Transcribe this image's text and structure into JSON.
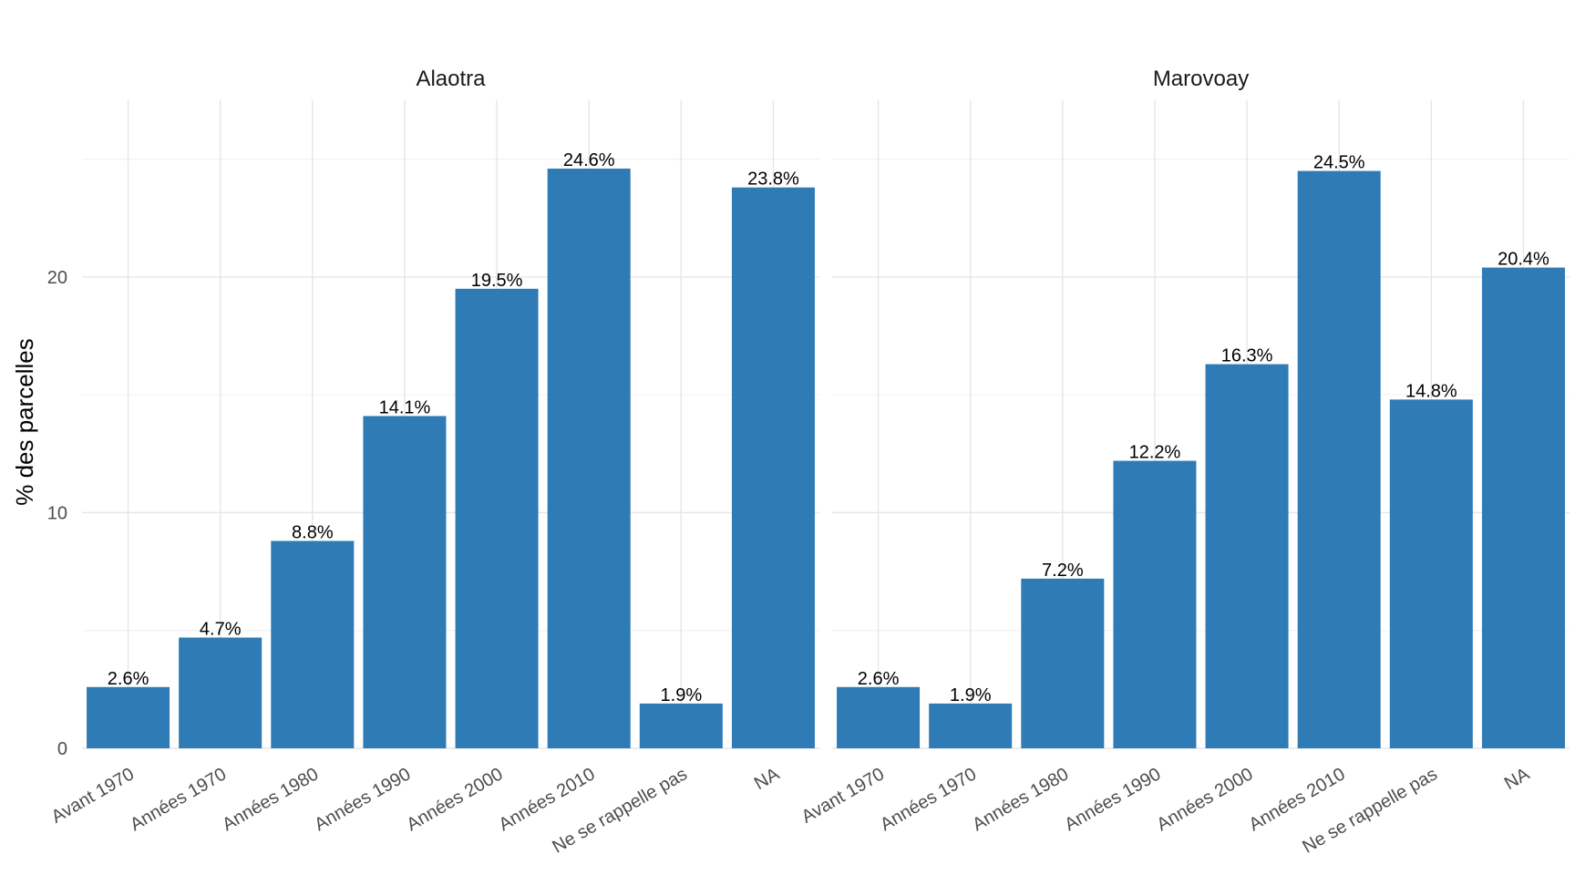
{
  "chart_data": {
    "type": "bar",
    "ylabel": "% des parcelles",
    "xlabel": "",
    "ylim": [
      0,
      27.5
    ],
    "y_ticks": [
      0,
      10,
      20
    ],
    "grid": true,
    "bar_color": "#2e7bb6",
    "categories": [
      "Avant 1970",
      "Années 1970",
      "Années 1980",
      "Années 1990",
      "Années 2000",
      "Années 2010",
      "Ne se rappelle pas",
      "NA"
    ],
    "panels": [
      {
        "title": "Alaotra",
        "values": [
          2.6,
          4.7,
          8.8,
          14.1,
          19.5,
          24.6,
          1.9,
          23.8
        ],
        "labels": [
          "2.6%",
          "4.7%",
          "8.8%",
          "14.1%",
          "19.5%",
          "24.6%",
          "1.9%",
          "23.8%"
        ]
      },
      {
        "title": "Marovoay",
        "values": [
          2.6,
          1.9,
          7.2,
          12.2,
          16.3,
          24.5,
          14.8,
          20.4
        ],
        "labels": [
          "2.6%",
          "1.9%",
          "7.2%",
          "12.2%",
          "16.3%",
          "24.5%",
          "14.8%",
          "20.4%"
        ]
      }
    ]
  }
}
